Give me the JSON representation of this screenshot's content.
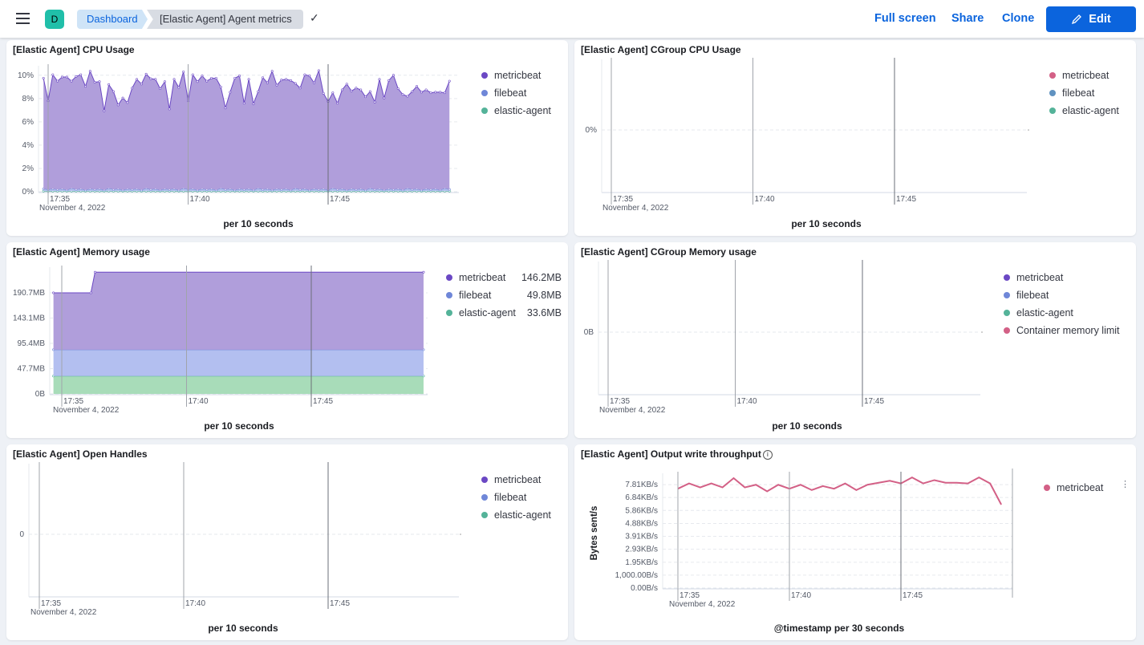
{
  "header": {
    "avatar": "D",
    "breadcrumbs": [
      "Dashboard",
      "[Elastic Agent] Agent metrics"
    ],
    "actions": [
      "Full screen",
      "Share",
      "Clone"
    ],
    "edit_label": "Edit",
    "colors": {
      "accent": "#0b64dd"
    }
  },
  "panels": [
    {
      "title": "[Elastic Agent] CPU Usage",
      "legend": [
        {
          "name": "metricbeat",
          "color": "#6b48c4"
        },
        {
          "name": "filebeat",
          "color": "#6f87d8"
        },
        {
          "name": "elastic-agent",
          "color": "#54b399"
        }
      ],
      "chart_data": {
        "type": "area",
        "stacked": true,
        "x_ticks": [
          "17:35",
          "17:40",
          "17:45"
        ],
        "x_date": "November 4, 2022",
        "xlabel": "per 10 seconds",
        "y_ticks": [
          0,
          2,
          4,
          6,
          8,
          10
        ],
        "y_unit": "%",
        "ylim": [
          0,
          10.4
        ],
        "series": [
          {
            "name": "elastic-agent",
            "fill": "#a8d9c4",
            "start": "17:34:50",
            "step_s": 10,
            "values": [
              0.05,
              0.05,
              0.05,
              0.05,
              0.05,
              0.05,
              0.05,
              0.05,
              0.05,
              0.05,
              0.05,
              0.05,
              0.05,
              0.05,
              0.05,
              0.05,
              0.05,
              0.05,
              0.05,
              0.05,
              0.05,
              0.05,
              0.05,
              0.05,
              0.05,
              0.05,
              0.05,
              0.05,
              0.05,
              0.05,
              0.05,
              0.05,
              0.05,
              0.05,
              0.05,
              0.05,
              0.05,
              0.05,
              0.05,
              0.05,
              0.05,
              0.05,
              0.05,
              0.05,
              0.05,
              0.05,
              0.05,
              0.05,
              0.05,
              0.05,
              0.05,
              0.05,
              0.05,
              0.05,
              0.05,
              0.05,
              0.05,
              0.05,
              0.05,
              0.05,
              0.05,
              0.05,
              0.05,
              0.05,
              0.05,
              0.05,
              0.05,
              0.05,
              0.05,
              0.05,
              0.05,
              0.05,
              0.05,
              0.05,
              0.05,
              0.05,
              0.05,
              0.05,
              0.05,
              0.05,
              0.05,
              0.05,
              0.05,
              0.05,
              0.05,
              0.05,
              0.05,
              0.05
            ]
          },
          {
            "name": "filebeat",
            "fill": "#b6c2ee",
            "start": "17:34:50",
            "step_s": 10,
            "values": [
              0.2,
              0.15,
              0.2,
              0.15,
              0.2,
              0.1,
              0.25,
              0.15,
              0.2,
              0.1,
              0.2,
              0.15,
              0.2,
              0.1,
              0.25,
              0.15,
              0.2,
              0.1,
              0.2,
              0.15,
              0.2,
              0.1,
              0.25,
              0.15,
              0.2,
              0.1,
              0.2,
              0.15,
              0.2,
              0.1,
              0.25,
              0.15,
              0.2,
              0.1,
              0.2,
              0.15,
              0.2,
              0.1,
              0.25,
              0.15,
              0.2,
              0.1,
              0.2,
              0.15,
              0.2,
              0.1,
              0.25,
              0.15,
              0.2,
              0.1,
              0.2,
              0.15,
              0.2,
              0.1,
              0.25,
              0.15,
              0.2,
              0.1,
              0.2,
              0.15,
              0.2,
              0.1,
              0.25,
              0.15,
              0.2,
              0.1,
              0.2,
              0.15,
              0.2,
              0.1,
              0.25,
              0.15,
              0.2,
              0.1,
              0.2,
              0.15,
              0.2,
              0.1,
              0.25,
              0.15,
              0.2,
              0.1,
              0.2,
              0.15,
              0.2,
              0.1,
              0.25,
              0.15
            ]
          },
          {
            "name": "metricbeat",
            "fill": "#b09edb",
            "start": "17:34:50",
            "step_s": 10,
            "values": [
              9.5,
              7.6,
              9.8,
              9.3,
              9.6,
              9.7,
              9.2,
              9.7,
              9.8,
              8.9,
              10.1,
              9.2,
              9.2,
              6.8,
              8.9,
              8.4,
              7.2,
              7.9,
              7.4,
              8.7,
              9.4,
              9.1,
              9.8,
              9.5,
              9.4,
              8.7,
              9.2,
              6.9,
              9.4,
              8.8,
              10,
              7.6,
              9.8,
              9.3,
              9.7,
              9.3,
              9.5,
              9.6,
              8.7,
              7,
              8.3,
              9.6,
              9.7,
              7.4,
              9.4,
              7.4,
              8.3,
              9.6,
              9.1,
              10.2,
              8.9,
              9.4,
              9.4,
              9.4,
              9.0,
              8.7,
              9.8,
              9.8,
              9.1,
              10.2,
              8.2,
              7.6,
              8.2,
              7.4,
              8.5,
              9.1,
              8.4,
              8.7,
              8.5,
              8.0,
              8.3,
              7.5,
              9.4,
              7.9,
              9.3,
              9.8,
              8.6,
              8.2,
              7.9,
              8.4,
              8.8,
              8.4,
              8.5,
              8.3,
              8.3,
              8.4,
              8.2,
              9.3
            ]
          }
        ]
      }
    },
    {
      "title": "[Elastic Agent] CGroup CPU Usage",
      "legend": [
        {
          "name": "metricbeat",
          "color": "#d36086"
        },
        {
          "name": "filebeat",
          "color": "#6092c0"
        },
        {
          "name": "elastic-agent",
          "color": "#54b399"
        }
      ],
      "chart_data": {
        "type": "area",
        "x_ticks": [
          "17:35",
          "17:40",
          "17:45"
        ],
        "x_date": "November 4, 2022",
        "xlabel": "per 10 seconds",
        "y_ticks": [
          0
        ],
        "y_unit": "%",
        "series": []
      }
    },
    {
      "title": "[Elastic Agent] Memory usage",
      "legend": [
        {
          "name": "metricbeat",
          "color": "#6b48c4",
          "value": "146.2MB"
        },
        {
          "name": "filebeat",
          "color": "#6f87d8",
          "value": "49.8MB"
        },
        {
          "name": "elastic-agent",
          "color": "#54b399",
          "value": "33.6MB"
        }
      ],
      "chart_data": {
        "type": "area",
        "stacked": true,
        "x_ticks": [
          "17:35",
          "17:40",
          "17:45"
        ],
        "x_date": "November 4, 2022",
        "xlabel": "per 10 seconds",
        "y_ticks": [
          0,
          47.7,
          95.4,
          143.1,
          190.7
        ],
        "y_tick_labels": [
          "0B",
          "47.7MB",
          "95.4MB",
          "143.1MB",
          "190.7MB"
        ],
        "ylim": [
          0,
          230
        ],
        "series": [
          {
            "name": "elastic-agent",
            "fill": "#a8dcb9",
            "points": [
              [
                "17:34:40",
                33.6
              ],
              [
                "17:49:30",
                33.6
              ]
            ]
          },
          {
            "name": "filebeat",
            "fill": "#b3bff0",
            "points": [
              [
                "17:34:40",
                49.8
              ],
              [
                "17:49:30",
                49.8
              ]
            ]
          },
          {
            "name": "metricbeat",
            "fill": "#b09edb",
            "points": [
              [
                "17:34:40",
                107.3
              ],
              [
                "17:36:10",
                107.3
              ],
              [
                "17:36:20",
                146.2
              ],
              [
                "17:49:30",
                146.2
              ]
            ]
          }
        ]
      }
    },
    {
      "title": "[Elastic Agent] CGroup Memory usage",
      "legend": [
        {
          "name": "metricbeat",
          "color": "#6b48c4"
        },
        {
          "name": "filebeat",
          "color": "#6f87d8"
        },
        {
          "name": "elastic-agent",
          "color": "#54b399"
        },
        {
          "name": "Container memory limit",
          "color": "#d36086"
        }
      ],
      "chart_data": {
        "type": "area",
        "x_ticks": [
          "17:35",
          "17:40",
          "17:45"
        ],
        "x_date": "November 4, 2022",
        "xlabel": "per 10 seconds",
        "y_ticks": [
          0
        ],
        "y_tick_labels": [
          "0B"
        ],
        "series": []
      }
    },
    {
      "title": "[Elastic Agent] Open Handles",
      "legend": [
        {
          "name": "metricbeat",
          "color": "#6b48c4"
        },
        {
          "name": "filebeat",
          "color": "#6f87d8"
        },
        {
          "name": "elastic-agent",
          "color": "#54b399"
        }
      ],
      "chart_data": {
        "type": "line",
        "x_ticks": [
          "17:35",
          "17:40",
          "17:45"
        ],
        "x_date": "November 4, 2022",
        "xlabel": "per 10 seconds",
        "y_ticks": [
          0
        ],
        "y_tick_labels": [
          "0"
        ],
        "series": []
      }
    },
    {
      "title": "[Elastic Agent] Output write throughput",
      "info_icon": "info-icon",
      "legend": [
        {
          "name": "metricbeat",
          "color": "#d36086"
        }
      ],
      "chart_data": {
        "type": "line",
        "x_ticks": [
          "17:35",
          "17:40",
          "17:45"
        ],
        "x_date": "November 4, 2022",
        "xlabel": "@timestamp per 30 seconds",
        "ylabel": "Bytes sent/s",
        "y_ticks": [
          0,
          0.977,
          1.95,
          2.93,
          3.91,
          4.88,
          5.86,
          6.84,
          7.81
        ],
        "y_tick_labels": [
          "0.00B/s",
          "1,000.00B/s",
          "1.95KB/s",
          "2.93KB/s",
          "3.91KB/s",
          "4.88KB/s",
          "5.86KB/s",
          "6.84KB/s",
          "7.81KB/s"
        ],
        "ylim": [
          0,
          8.3
        ],
        "series": [
          {
            "name": "metricbeat",
            "color": "#d36086",
            "start": "17:35:00",
            "step_s": 30,
            "values": [
              7.5,
              7.9,
              7.6,
              7.9,
              7.6,
              8.3,
              7.6,
              7.8,
              7.3,
              7.8,
              7.5,
              7.8,
              7.4,
              7.7,
              7.5,
              7.9,
              7.4,
              7.8,
              7.95,
              8.1,
              7.9,
              8.35,
              7.9,
              8.15,
              7.95,
              7.95,
              7.9,
              8.35,
              7.9,
              6.3
            ]
          }
        ]
      }
    }
  ]
}
